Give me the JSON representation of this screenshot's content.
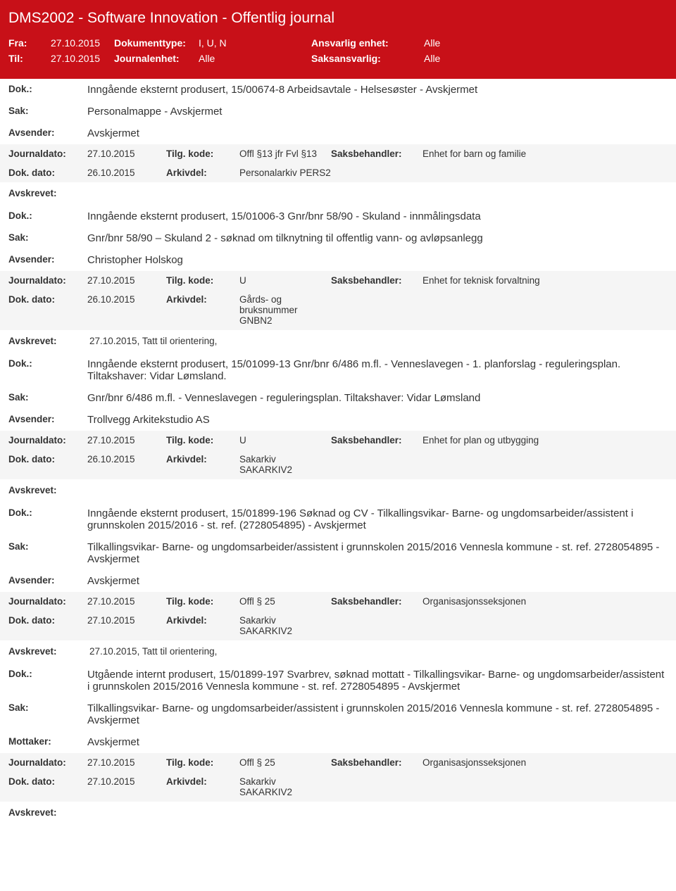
{
  "header": {
    "title": "DMS2002 - Software Innovation - Offentlig journal",
    "fra_lbl": "Fra:",
    "fra": "27.10.2015",
    "til_lbl": "Til:",
    "til": "27.10.2015",
    "dokumenttype_lbl": "Dokumenttype:",
    "dokumenttype": "I, U, N",
    "journalenhet_lbl": "Journalenhet:",
    "journalenhet": "Alle",
    "ansvarlig_lbl": "Ansvarlig enhet:",
    "ansvarlig": "Alle",
    "saksansvarlig_lbl": "Saksansvarlig:",
    "saksansvarlig": "Alle"
  },
  "labels": {
    "dok": "Dok.:",
    "sak": "Sak:",
    "avsender": "Avsender:",
    "mottaker": "Mottaker:",
    "journaldato": "Journaldato:",
    "dokdato": "Dok. dato:",
    "tilgkode": "Tilg. kode:",
    "arkivdel": "Arkivdel:",
    "saksbehandler": "Saksbehandler:",
    "avskrevet": "Avskrevet:"
  },
  "entries": [
    {
      "dok": "Inngående eksternt produsert, 15/00674-8 Arbeidsavtale - Helsesøster - Avskjermet",
      "sak": "Personalmappe - Avskjermet",
      "party_lbl": "avsender",
      "party": "Avskjermet",
      "journaldato": "27.10.2015",
      "tilgkode": "Offl §13 jfr Fvl §13",
      "saksbehandler": "Enhet for barn og familie",
      "dokdato": "26.10.2015",
      "arkivdel": "Personalarkiv PERS2",
      "avskrevet": ""
    },
    {
      "dok": "Inngående eksternt produsert, 15/01006-3 Gnr/bnr 58/90 - Skuland - innmålingsdata",
      "sak": "Gnr/bnr 58/90 – Skuland 2 - søknad om tilknytning til offentlig vann- og avløpsanlegg",
      "party_lbl": "avsender",
      "party": "Christopher Holskog",
      "journaldato": "27.10.2015",
      "tilgkode": "U",
      "saksbehandler": "Enhet for teknisk forvaltning",
      "dokdato": "26.10.2015",
      "arkivdel": "Gårds- og bruksnummer GNBN2",
      "avskrevet": "27.10.2015, Tatt til orientering,"
    },
    {
      "dok": "Inngående eksternt produsert, 15/01099-13 Gnr/bnr 6/486 m.fl. - Venneslavegen - 1. planforslag - reguleringsplan. Tiltakshaver: Vidar Lømsland.",
      "sak": "Gnr/bnr 6/486 m.fl. - Venneslavegen - reguleringsplan. Tiltakshaver: Vidar Lømsland",
      "party_lbl": "avsender",
      "party": "Trollvegg Arkitekstudio AS",
      "journaldato": "27.10.2015",
      "tilgkode": "U",
      "saksbehandler": "Enhet for plan og utbygging",
      "dokdato": "26.10.2015",
      "arkivdel": "Sakarkiv SAKARKIV2",
      "avskrevet": ""
    },
    {
      "dok": "Inngående eksternt produsert, 15/01899-196 Søknad og CV - Tilkallingsvikar- Barne- og ungdomsarbeider/assistent i grunnskolen 2015/2016 - st. ref. (2728054895) - Avskjermet",
      "sak": "Tilkallingsvikar- Barne- og ungdomsarbeider/assistent i grunnskolen 2015/2016 Vennesla kommune - st. ref. 2728054895 - Avskjermet",
      "party_lbl": "avsender",
      "party": "Avskjermet",
      "journaldato": "27.10.2015",
      "tilgkode": "Offl § 25",
      "saksbehandler": "Organisasjonsseksjonen",
      "dokdato": "27.10.2015",
      "arkivdel": "Sakarkiv SAKARKIV2",
      "avskrevet": "27.10.2015, Tatt til orientering,"
    },
    {
      "dok": "Utgående internt produsert, 15/01899-197 Svarbrev, søknad mottatt - Tilkallingsvikar- Barne- og ungdomsarbeider/assistent i grunnskolen 2015/2016 Vennesla kommune - st. ref. 2728054895 - Avskjermet",
      "sak": "Tilkallingsvikar- Barne- og ungdomsarbeider/assistent i grunnskolen 2015/2016 Vennesla kommune - st. ref. 2728054895 - Avskjermet",
      "party_lbl": "mottaker",
      "party": "Avskjermet",
      "journaldato": "27.10.2015",
      "tilgkode": "Offl § 25",
      "saksbehandler": "Organisasjonsseksjonen",
      "dokdato": "27.10.2015",
      "arkivdel": "Sakarkiv SAKARKIV2",
      "avskrevet": ""
    }
  ]
}
